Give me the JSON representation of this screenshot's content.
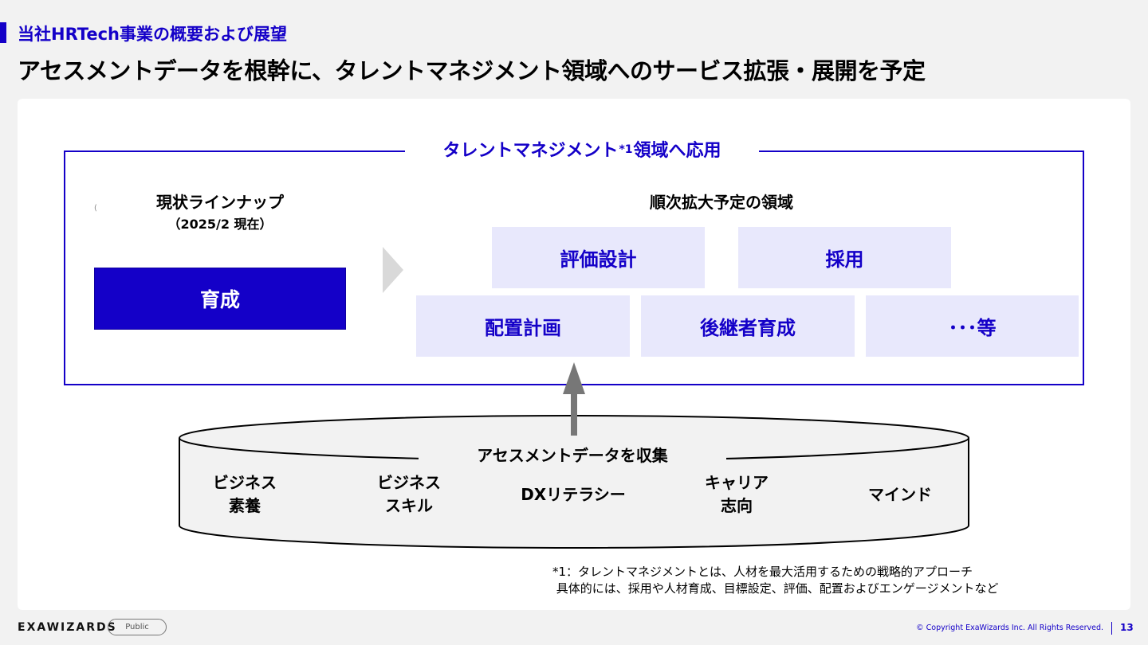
{
  "header": {
    "section_label": "当社HRTech事業の概要および展望",
    "headline": "アセスメントデータを根幹に、タレントマネジメント領域へのサービス拡張・展開を予定"
  },
  "diagram": {
    "frame_title": "タレントマネジメント",
    "frame_title_sup": "*1",
    "frame_title_suffix": "領域へ応用",
    "current_lineup": {
      "title": "現状ラインナップ",
      "subtitle": "（2025/2 現在）",
      "mark": "(",
      "item": "育成"
    },
    "expansion": {
      "title": "順次拡大予定の領域",
      "items": [
        "評価設計",
        "採用",
        "配置計画",
        "後継者育成",
        "･･･等"
      ]
    },
    "data_base": {
      "label": "アセスメントデータを収集",
      "categories": [
        "ビジネス\n素養",
        "ビジネス\nスキル",
        "DXリテラシー",
        "キャリア\n志向",
        "マインド"
      ]
    },
    "footnote": "*1：タレントマネジメントとは、人材を最大活用するための戦略的アプローチ\n 具体的には、採用や人材育成、目標設定、評価、配置およびエンゲージメントなど"
  },
  "footer": {
    "logo": "EXAWIZARDS",
    "badge": "Public",
    "copyright": "© Copyright ExaWizards Inc. All Rights Reserved.",
    "page": "13"
  },
  "colors": {
    "accent": "#1400c8",
    "box_fill": "#e8e8fc",
    "background": "#f2f2f2",
    "arrow_gray": "#777777"
  }
}
